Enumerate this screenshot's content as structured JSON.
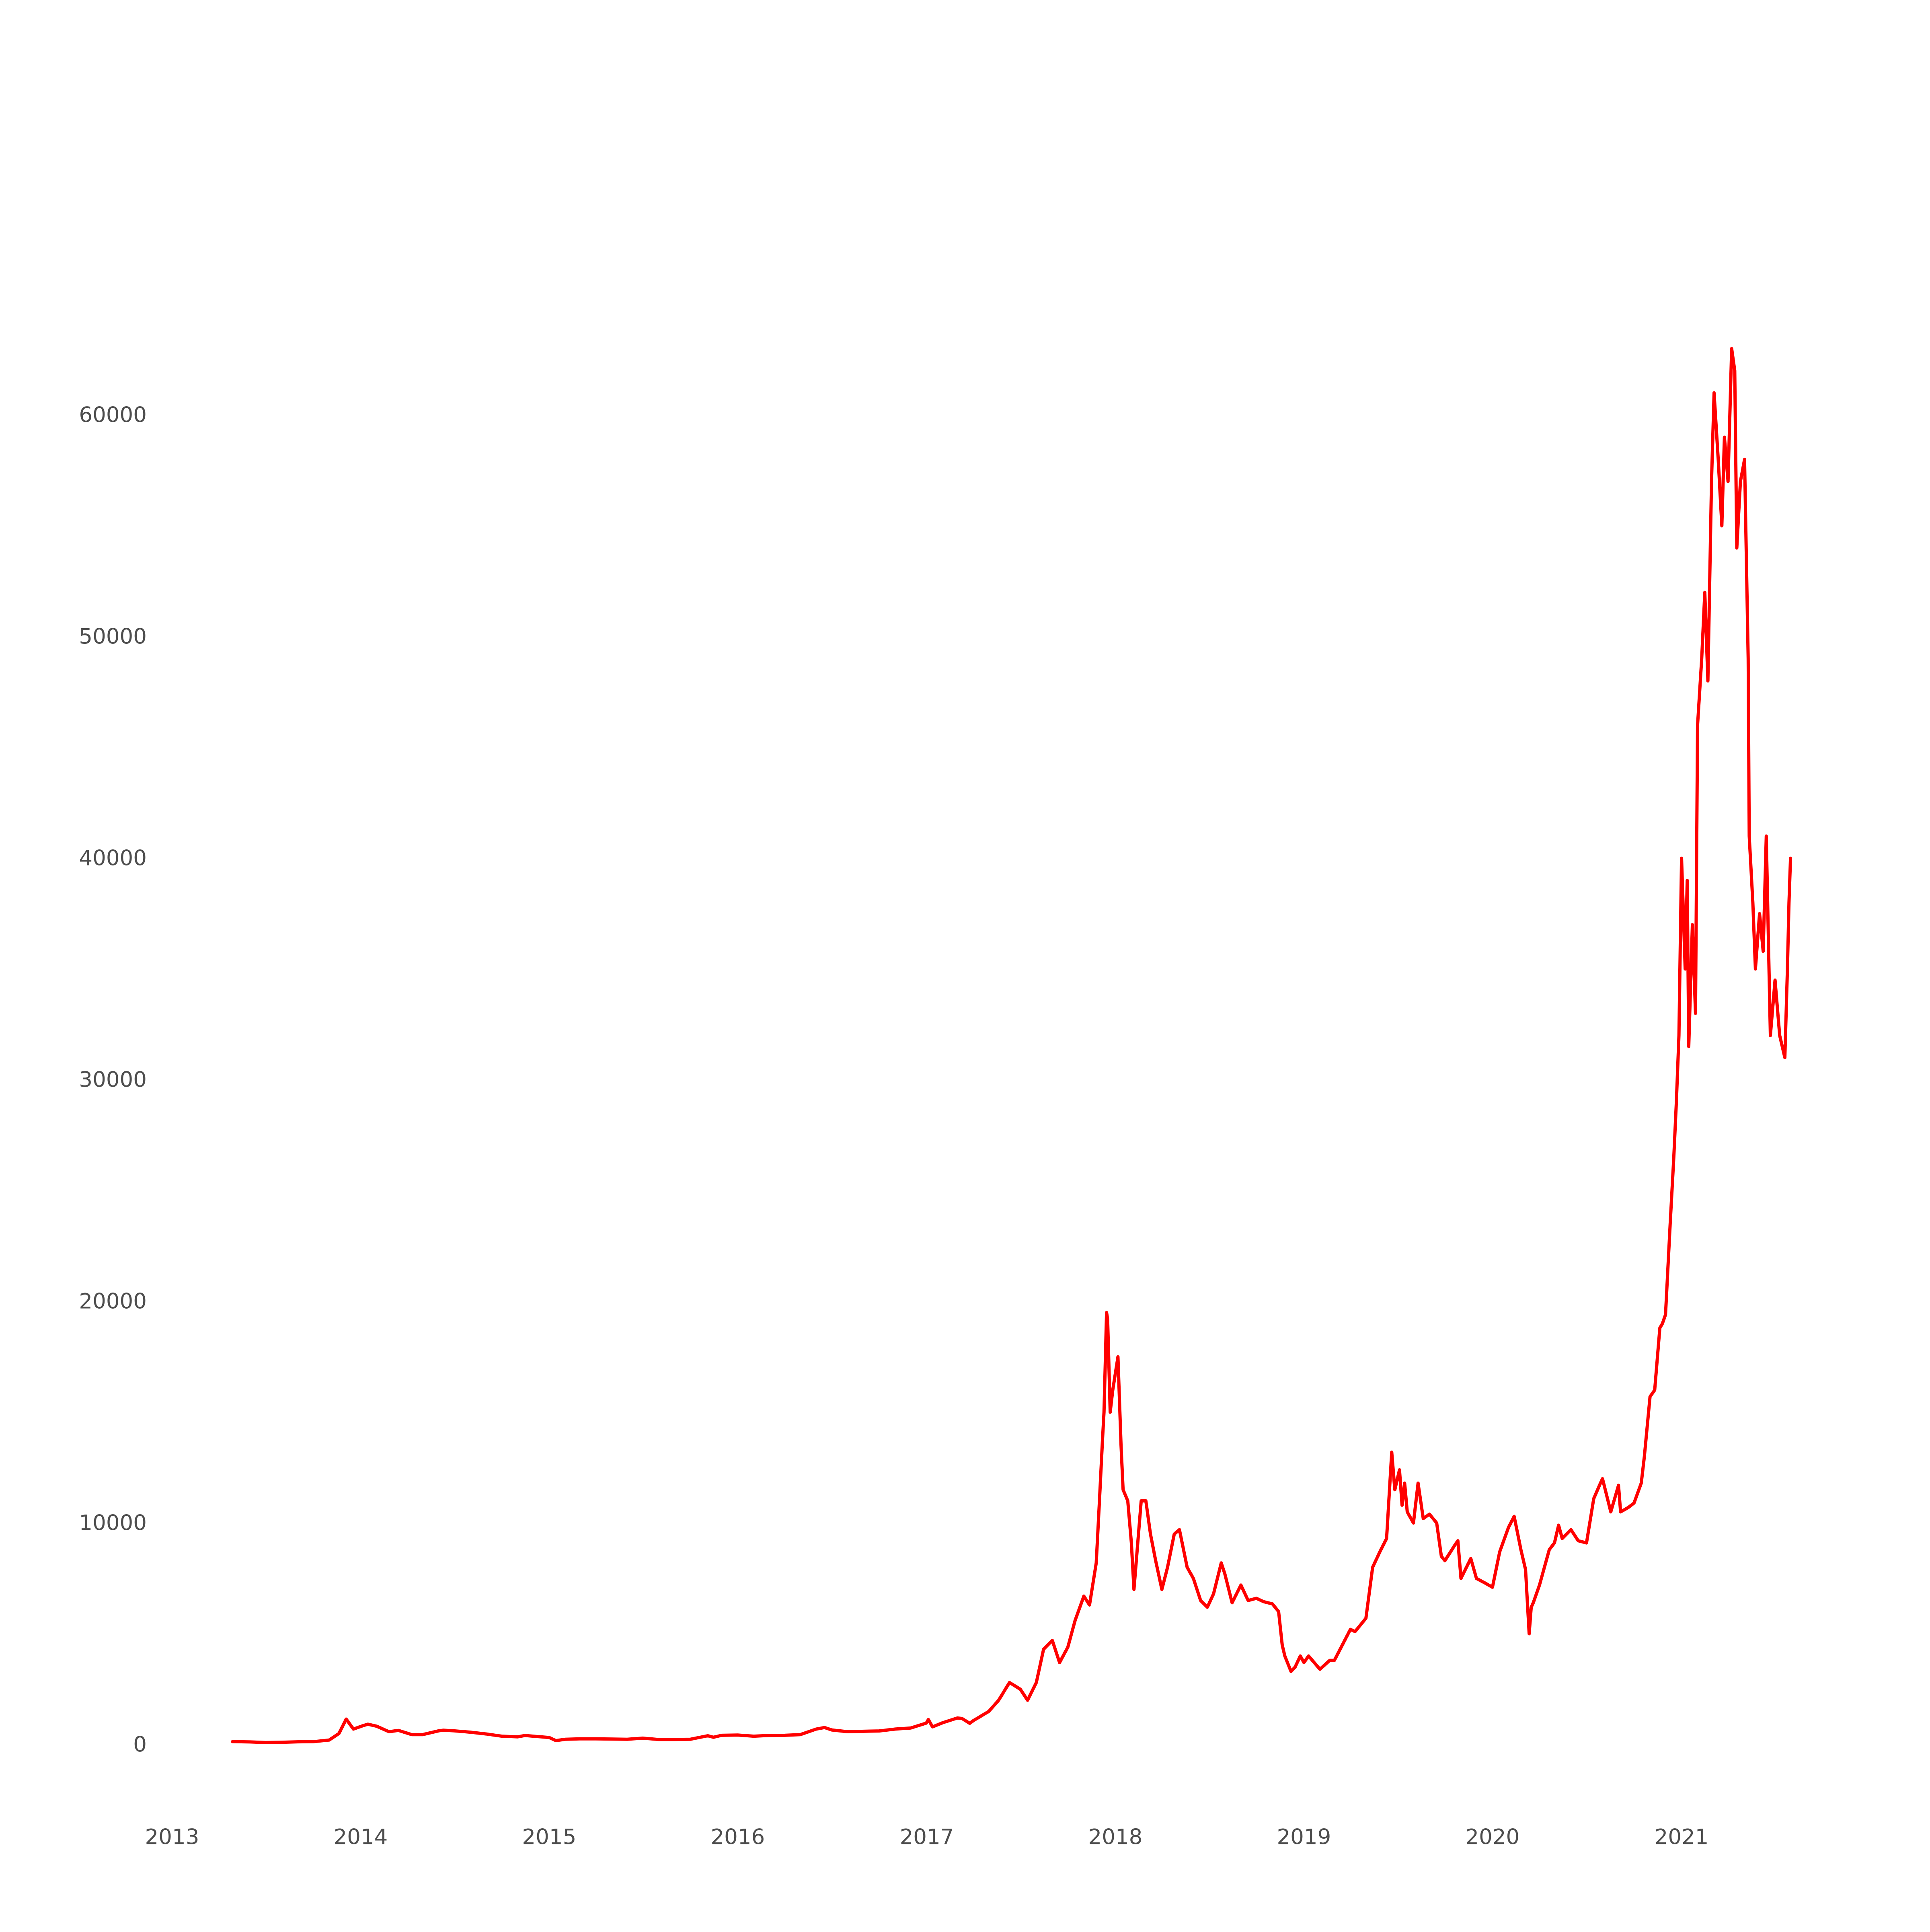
{
  "chart_data": {
    "type": "line",
    "title": "",
    "xlabel": "",
    "ylabel": "",
    "grid": false,
    "legend": "none",
    "line_color": "#ff0000",
    "x_ticks": [
      "2013",
      "2014",
      "2015",
      "2016",
      "2017",
      "2018",
      "2019",
      "2020",
      "2021"
    ],
    "y_ticks": [
      "0",
      "10000",
      "20000",
      "30000",
      "40000",
      "50000",
      "60000"
    ],
    "xlim": [
      "2013-01-01",
      "2022-01-01"
    ],
    "ylim": [
      -2000,
      71000
    ],
    "series": [
      {
        "x": [
          "2013-04-28",
          "2013-06-01",
          "2013-07-01",
          "2013-08-01",
          "2013-09-01",
          "2013-10-01",
          "2013-11-01",
          "2013-11-20",
          "2013-12-04",
          "2013-12-18",
          "2014-01-05",
          "2014-01-15",
          "2014-02-01",
          "2014-02-25",
          "2014-03-15",
          "2014-04-10",
          "2014-05-01",
          "2014-06-01",
          "2014-06-10",
          "2014-07-01",
          "2014-08-01",
          "2014-09-01",
          "2014-10-01",
          "2014-11-01",
          "2014-11-15",
          "2014-12-01",
          "2015-01-01",
          "2015-01-14",
          "2015-02-01",
          "2015-03-01",
          "2015-04-01",
          "2015-06-01",
          "2015-07-01",
          "2015-08-01",
          "2015-09-01",
          "2015-10-01",
          "2015-11-04",
          "2015-11-15",
          "2015-12-01",
          "2016-01-01",
          "2016-02-01",
          "2016-03-01",
          "2016-04-01",
          "2016-05-01",
          "2016-06-01",
          "2016-06-17",
          "2016-07-01",
          "2016-08-01",
          "2016-09-01",
          "2016-10-01",
          "2016-11-01",
          "2016-12-01",
          "2016-12-31",
          "2017-01-04",
          "2017-01-12",
          "2017-02-01",
          "2017-03-01",
          "2017-03-10",
          "2017-03-25",
          "2017-04-01",
          "2017-05-01",
          "2017-05-20",
          "2017-06-10",
          "2017-07-01",
          "2017-07-15",
          "2017-08-01",
          "2017-08-15",
          "2017-09-01",
          "2017-09-15",
          "2017-10-01",
          "2017-10-15",
          "2017-11-01",
          "2017-11-12",
          "2017-11-25",
          "2017-12-01",
          "2017-12-07",
          "2017-12-10",
          "2017-12-15",
          "2017-12-17",
          "2017-12-22",
          "2017-12-27",
          "2018-01-06",
          "2018-01-12",
          "2018-01-16",
          "2018-01-25",
          "2018-02-01",
          "2018-02-06",
          "2018-02-20",
          "2018-03-01",
          "2018-03-10",
          "2018-03-20",
          "2018-04-01",
          "2018-04-12",
          "2018-04-25",
          "2018-05-05",
          "2018-05-20",
          "2018-06-01",
          "2018-06-15",
          "2018-06-28",
          "2018-07-10",
          "2018-07-25",
          "2018-08-01",
          "2018-08-15",
          "2018-09-01",
          "2018-09-15",
          "2018-10-01",
          "2018-10-15",
          "2018-11-01",
          "2018-11-13",
          "2018-11-20",
          "2018-11-25",
          "2018-12-07",
          "2018-12-15",
          "2018-12-25",
          "2019-01-01",
          "2019-01-10",
          "2019-02-01",
          "2019-02-20",
          "2019-03-01",
          "2019-04-01",
          "2019-04-10",
          "2019-05-01",
          "2019-05-14",
          "2019-05-28",
          "2019-06-10",
          "2019-06-20",
          "2019-06-26",
          "2019-07-05",
          "2019-07-10",
          "2019-07-15",
          "2019-07-20",
          "2019-08-01",
          "2019-08-10",
          "2019-08-20",
          "2019-09-01",
          "2019-09-15",
          "2019-09-24",
          "2019-10-01",
          "2019-10-20",
          "2019-10-26",
          "2019-11-01",
          "2019-11-20",
          "2019-12-01",
          "2019-12-17",
          "2020-01-01",
          "2020-01-15",
          "2020-02-01",
          "2020-02-12",
          "2020-02-25",
          "2020-03-05",
          "2020-03-12",
          "2020-03-16",
          "2020-03-20",
          "2020-04-01",
          "2020-04-20",
          "2020-04-30",
          "2020-05-08",
          "2020-05-15",
          "2020-06-01",
          "2020-06-15",
          "2020-07-01",
          "2020-07-15",
          "2020-07-28",
          "2020-08-01",
          "2020-08-17",
          "2020-09-01",
          "2020-09-05",
          "2020-09-20",
          "2020-10-01",
          "2020-10-15",
          "2020-10-21",
          "2020-11-01",
          "2020-11-10",
          "2020-11-20",
          "2020-11-25",
          "2020-12-01",
          "2020-12-10",
          "2020-12-17",
          "2020-12-22",
          "2020-12-27",
          "2021-01-01",
          "2021-01-08",
          "2021-01-12",
          "2021-01-15",
          "2021-01-22",
          "2021-01-28",
          "2021-02-01",
          "2021-02-09",
          "2021-02-15",
          "2021-02-21",
          "2021-02-28",
          "2021-03-05",
          "2021-03-13",
          "2021-03-20",
          "2021-03-25",
          "2021-04-01",
          "2021-04-08",
          "2021-04-14",
          "2021-04-18",
          "2021-04-25",
          "2021-05-03",
          "2021-05-10",
          "2021-05-12",
          "2021-05-19",
          "2021-05-24",
          "2021-06-01",
          "2021-06-08",
          "2021-06-14",
          "2021-06-22",
          "2021-07-01",
          "2021-07-10",
          "2021-07-20",
          "2021-07-25",
          "2021-07-28",
          "2021-07-31"
        ],
        "values": [
          135,
          120,
          95,
          105,
          125,
          130,
          205,
          500,
          1150,
          700,
          850,
          920,
          830,
          580,
          640,
          450,
          450,
          620,
          650,
          620,
          560,
          480,
          380,
          350,
          410,
          380,
          320,
          180,
          240,
          260,
          260,
          240,
          290,
          230,
          230,
          240,
          400,
          330,
          420,
          430,
          380,
          410,
          420,
          450,
          700,
          770,
          660,
          580,
          600,
          615,
          700,
          750,
          970,
          1130,
          800,
          990,
          1200,
          1180,
          960,
          1080,
          1500,
          2000,
          2800,
          2500,
          2000,
          2800,
          4300,
          4700,
          3700,
          4400,
          5600,
          6700,
          6300,
          8200,
          10900,
          13700,
          15000,
          19500,
          19200,
          15000,
          16000,
          17500,
          13500,
          11500,
          11000,
          9100,
          7000,
          11000,
          11000,
          9500,
          8300,
          7000,
          8000,
          9500,
          9700,
          8000,
          7500,
          6500,
          6200,
          6800,
          8200,
          7700,
          6400,
          7200,
          6500,
          6600,
          6450,
          6350,
          6000,
          4500,
          4000,
          3300,
          3500,
          4000,
          3700,
          4000,
          3400,
          3800,
          3800,
          5200,
          5100,
          5700,
          8000,
          8700,
          9300,
          13200,
          11500,
          12400,
          10800,
          11800,
          10500,
          10000,
          11800,
          10200,
          10400,
          10000,
          8500,
          8300,
          9000,
          9200,
          7500,
          8400,
          7500,
          7300,
          7100,
          8700,
          9800,
          10300,
          8800,
          7900,
          5000,
          6200,
          6400,
          7200,
          8800,
          9100,
          9900,
          9300,
          9700,
          9200,
          9100,
          11100,
          11800,
          12000,
          10500,
          11700,
          10500,
          10700,
          10900,
          11800,
          13000,
          15700,
          16000,
          18800,
          19000,
          19400,
          23500,
          26500,
          29000,
          32000,
          40000,
          35000,
          39000,
          31500,
          37000,
          33000,
          46000,
          49000,
          52000,
          48000,
          57000,
          61000,
          58000,
          55000,
          59000,
          57000,
          63000,
          62000,
          54000,
          57000,
          58000,
          49000,
          41000,
          38000,
          35000,
          37500,
          35800,
          41000,
          32000,
          34500,
          32000,
          31000,
          35000,
          38000,
          40000
        ]
      }
    ]
  }
}
